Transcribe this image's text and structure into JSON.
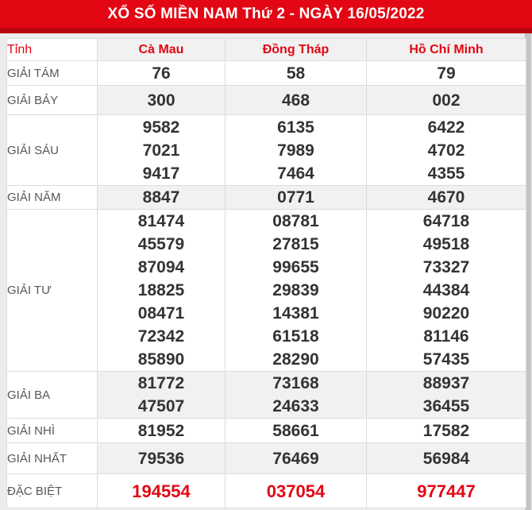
{
  "title_bar": {
    "title": "XỔ SỐ MIỀN NAM Thứ 2 - NGÀY 16/05/2022"
  },
  "table": {
    "province_column_header": "Tỉnh",
    "province_columns": [
      "Cà Mau",
      "Đồng Tháp",
      "Hồ Chí Minh"
    ],
    "prize_rows": [
      {
        "label": "GIẢI TÁM",
        "numbers": [
          [
            "76"
          ],
          [
            "58"
          ],
          [
            "79"
          ]
        ]
      },
      {
        "label": "GIẢI BẢY",
        "numbers": [
          [
            "300"
          ],
          [
            "468"
          ],
          [
            "002"
          ]
        ]
      },
      {
        "label": "GIẢI SÁU",
        "numbers": [
          [
            "9582",
            "7021",
            "9417"
          ],
          [
            "6135",
            "7989",
            "7464"
          ],
          [
            "6422",
            "4702",
            "4355"
          ]
        ]
      },
      {
        "label": "GIẢI NĂM",
        "numbers": [
          [
            "8847"
          ],
          [
            "0771"
          ],
          [
            "4670"
          ]
        ]
      },
      {
        "label": "GIẢI TƯ",
        "numbers": [
          [
            "81474",
            "45579",
            "87094",
            "18825",
            "08471",
            "72342",
            "85890"
          ],
          [
            "08781",
            "27815",
            "99655",
            "29839",
            "14381",
            "61518",
            "28290"
          ],
          [
            "64718",
            "49518",
            "73327",
            "44384",
            "90220",
            "81146",
            "57435"
          ]
        ]
      },
      {
        "label": "GIẢI BA",
        "numbers": [
          [
            "81772",
            "47507"
          ],
          [
            "73168",
            "24633"
          ],
          [
            "88937",
            "36455"
          ]
        ]
      },
      {
        "label": "GIẢI NHÌ",
        "numbers": [
          [
            "81952"
          ],
          [
            "58661"
          ],
          [
            "17582"
          ]
        ]
      },
      {
        "label": "GIẢI NHẤT",
        "numbers": [
          [
            "79536"
          ],
          [
            "76469"
          ],
          [
            "56984"
          ]
        ]
      },
      {
        "label": "ĐẶC BIỆT",
        "numbers": [
          [
            "194554"
          ],
          [
            "037054"
          ],
          [
            "977447"
          ]
        ],
        "highlight": true
      }
    ]
  },
  "colors": {
    "accent_red": "#e30613",
    "accent_red_dark": "#b5050f",
    "stripe_gray": "#f1f1f1",
    "border_gray": "#dcdcdc",
    "number_color": "#333333",
    "label_color": "#585858"
  }
}
